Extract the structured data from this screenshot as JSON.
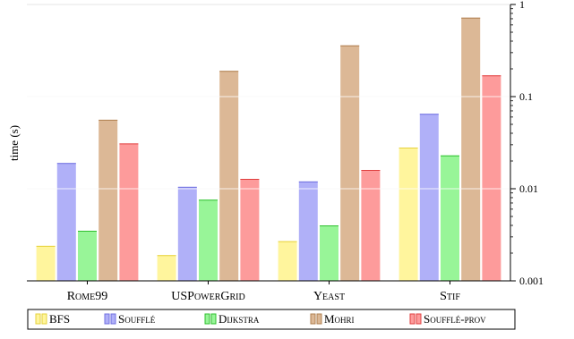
{
  "chart_data": {
    "type": "bar",
    "title": "",
    "xlabel": "",
    "ylabel": "time (s)",
    "yscale": "log",
    "ylim": [
      0.001,
      1
    ],
    "y_ticks": [
      0.001,
      0.01,
      0.1,
      1
    ],
    "y_tick_labels": [
      "0.001",
      "0.01",
      "0.1",
      "1"
    ],
    "y_axis_side": "right",
    "categories": [
      "Rome99",
      "USPowerGrid",
      "Yeast",
      "Stif"
    ],
    "series": [
      {
        "name": "BFS",
        "color": "#fff59d",
        "edge": "#e6d23c",
        "values": [
          0.0024,
          0.0019,
          0.0027,
          0.028
        ]
      },
      {
        "name": "Soufflé",
        "color": "#b0b0f8",
        "edge": "#7070e0",
        "values": [
          0.019,
          0.0105,
          0.012,
          0.065
        ]
      },
      {
        "name": "Dijkstra",
        "color": "#98f598",
        "edge": "#30c030",
        "values": [
          0.0035,
          0.0076,
          0.004,
          0.023
        ]
      },
      {
        "name": "Mohri",
        "color": "#dcb896",
        "edge": "#b08050",
        "values": [
          0.056,
          0.19,
          0.36,
          0.72
        ]
      },
      {
        "name": "Soufflé-prov",
        "color": "#fd9b9b",
        "edge": "#e04040",
        "values": [
          0.031,
          0.0128,
          0.016,
          0.17
        ]
      }
    ],
    "legend": {
      "position": "bottom"
    },
    "grid": "horizontal, major ticks"
  }
}
